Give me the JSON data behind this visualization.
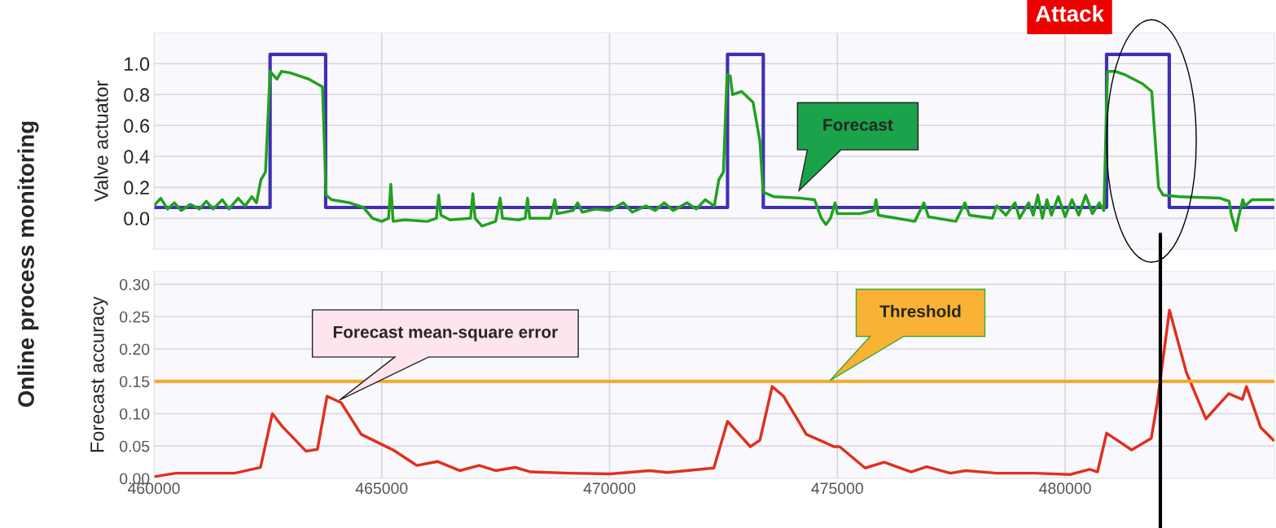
{
  "chart_data": [
    {
      "type": "step",
      "ylabel": "Valve actuator",
      "xlim": [
        460000,
        484600
      ],
      "ylim": [
        -0.2,
        1.2
      ],
      "yticks": [
        {
          "value": 0,
          "label": "0.0"
        },
        0.2,
        0.4,
        0.6,
        0.8,
        {
          "value": 1,
          "label": "1.0"
        }
      ],
      "xticks": [
        {
          "value": 460000,
          "label": null
        },
        {
          "value": 465000,
          "label": null
        },
        {
          "value": 470000,
          "label": null
        },
        {
          "value": 475000,
          "label": null
        },
        {
          "value": 480000,
          "label": null
        }
      ],
      "tick_labels": "y",
      "grid": true,
      "series": [
        {
          "type": "step",
          "color": "#3f2fb5",
          "x": [
            460000,
            462550,
            463770,
            472590,
            473375,
            480910,
            482285,
            484600
          ],
          "values": [
            0.07,
            1.06,
            0.07,
            1.06,
            0.07,
            1.06,
            0.07,
            0.07
          ]
        },
        {
          "type": "line",
          "color": "#21a11e",
          "x": [
            460000,
            460150,
            460300,
            460450,
            460600,
            460800,
            461000,
            461150,
            461300,
            461500,
            461650,
            461850,
            462000,
            462150,
            462250,
            462350,
            462450,
            462550,
            462700,
            462800,
            463000,
            463400,
            463700,
            463780,
            463900,
            464300,
            464600,
            464800,
            465000,
            465150,
            465200,
            465250,
            465500,
            466000,
            466200,
            466250,
            466300,
            466500,
            466950,
            467000,
            467050,
            467200,
            467500,
            467600,
            467650,
            468000,
            468150,
            468200,
            468250,
            468700,
            468800,
            468850,
            469200,
            469300,
            469400,
            469700,
            470000,
            470300,
            470500,
            470800,
            471000,
            471200,
            471400,
            471700,
            471900,
            472100,
            472300,
            472400,
            472500,
            472580,
            472650,
            472700,
            472900,
            473150,
            473300,
            473370,
            473600,
            474200,
            474500,
            474650,
            474750,
            474850,
            474950,
            475000,
            475500,
            475800,
            475850,
            475900,
            476300,
            476700,
            476900,
            477000,
            477600,
            477800,
            477900,
            478400,
            478500,
            478700,
            478900,
            479000,
            479200,
            479300,
            479400,
            479500,
            479600,
            479700,
            479850,
            480000,
            480150,
            480300,
            480450,
            480600,
            480750,
            480850,
            480930,
            481100,
            481300,
            481700,
            481900,
            482050,
            482150,
            482500,
            483400,
            483600,
            483650,
            483750,
            483800,
            483900,
            483950,
            484100,
            484600
          ],
          "values": [
            0.08,
            0.13,
            0.06,
            0.1,
            0.05,
            0.09,
            0.06,
            0.11,
            0.06,
            0.12,
            0.06,
            0.13,
            0.08,
            0.14,
            0.1,
            0.25,
            0.3,
            0.95,
            0.9,
            0.95,
            0.94,
            0.9,
            0.85,
            0.15,
            0.12,
            0.1,
            0.07,
            0.0,
            -0.02,
            0.0,
            0.22,
            -0.02,
            -0.01,
            -0.02,
            0.0,
            0.15,
            0.02,
            -0.01,
            0.0,
            0.16,
            0.0,
            -0.05,
            -0.02,
            0.13,
            0.0,
            -0.01,
            0.0,
            0.13,
            0.0,
            0.0,
            0.12,
            0.03,
            0.05,
            0.1,
            0.04,
            0.06,
            0.05,
            0.1,
            0.04,
            0.08,
            0.05,
            0.1,
            0.05,
            0.1,
            0.06,
            0.12,
            0.08,
            0.25,
            0.3,
            0.93,
            0.92,
            0.8,
            0.82,
            0.75,
            0.5,
            0.17,
            0.14,
            0.13,
            0.12,
            0.0,
            -0.04,
            0.0,
            0.1,
            0.03,
            0.03,
            0.05,
            0.12,
            0.02,
            0.0,
            -0.02,
            0.1,
            0.01,
            -0.02,
            0.1,
            0.02,
            0.0,
            0.08,
            0.02,
            0.1,
            0.0,
            0.1,
            0.02,
            0.15,
            0.0,
            0.12,
            0.02,
            0.14,
            0.01,
            0.12,
            0.02,
            0.15,
            0.03,
            0.1,
            0.05,
            0.95,
            0.95,
            0.93,
            0.87,
            0.82,
            0.2,
            0.15,
            0.14,
            0.13,
            0.11,
            0.02,
            -0.08,
            0.0,
            0.12,
            0.08,
            0.12,
            0.12
          ]
        }
      ],
      "annotations": [
        "Attack",
        "Forecast",
        "Online process monitoring"
      ]
    },
    {
      "type": "line",
      "ylabel": "Forecast accuracy",
      "xlim": [
        460000,
        484600
      ],
      "ylim": [
        0,
        0.32
      ],
      "yticks": [
        {
          "value": 0,
          "label": "0.00"
        },
        0.05,
        {
          "value": 0.1,
          "label": "0.10"
        },
        0.15,
        {
          "value": 0.2,
          "label": "0.20"
        },
        0.25,
        {
          "value": 0.3,
          "label": "0.30"
        }
      ],
      "xticks": [
        460000,
        465000,
        470000,
        475000,
        480000
      ],
      "grid": true,
      "series": [
        {
          "color": "#e0301e",
          "x": [
            460035,
            460480,
            461770,
            462210,
            462340,
            462600,
            462820,
            463340,
            463590,
            463800,
            464110,
            464550,
            465160,
            465250,
            465770,
            466230,
            466710,
            467140,
            467500,
            467930,
            468270,
            469140,
            470020,
            470880,
            471270,
            472290,
            472590,
            473090,
            473300,
            473570,
            473820,
            474320,
            474930,
            475050,
            475610,
            476030,
            476620,
            476960,
            477480,
            477820,
            478500,
            479340,
            480110,
            480540,
            480710,
            480910,
            481460,
            481890,
            482020,
            482290,
            482660,
            483090,
            483590,
            483890,
            483980,
            484290,
            484570
          ],
          "values": [
            0.003,
            0.008,
            0.008,
            0.015,
            0.017,
            0.1,
            0.08,
            0.042,
            0.045,
            0.127,
            0.117,
            0.068,
            0.047,
            0.044,
            0.02,
            0.026,
            0.012,
            0.02,
            0.012,
            0.017,
            0.01,
            0.008,
            0.007,
            0.012,
            0.009,
            0.016,
            0.088,
            0.049,
            0.059,
            0.142,
            0.127,
            0.068,
            0.049,
            0.049,
            0.016,
            0.025,
            0.01,
            0.018,
            0.008,
            0.012,
            0.008,
            0.008,
            0.006,
            0.014,
            0.01,
            0.07,
            0.044,
            0.062,
            0.116,
            0.26,
            0.164,
            0.092,
            0.131,
            0.122,
            0.142,
            0.079,
            0.059
          ]
        }
      ],
      "ref_lines": [
        {
          "axis": "y",
          "value": 0.15,
          "color": "#f5a623"
        },
        {
          "axis": "x",
          "value": 482090,
          "color": "#000000"
        }
      ],
      "annotations": [
        "Forecast mean-square error",
        "Threshold"
      ]
    }
  ]
}
